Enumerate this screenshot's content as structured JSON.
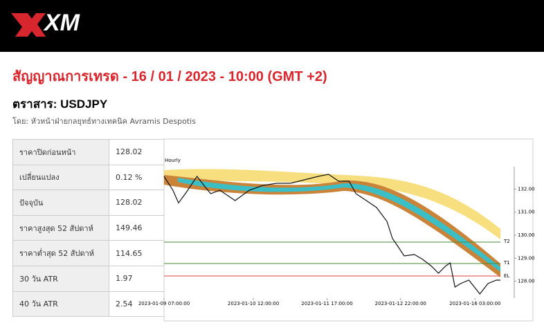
{
  "header": {
    "logo": "XM"
  },
  "title": "สัญญาณการเทรด - 16 / 01 / 2023 - 10:00 (GMT +2)",
  "instrument": "ตราสาร: USDJPY",
  "author": "โดย: หัวหน้าฝ่ายกลยุทธ์ทางเทคนิค Avramis Despotis",
  "table": {
    "rows": [
      [
        "ราคาปิดก่อนหน้า",
        "128.02"
      ],
      [
        "เปลี่ยนแปลง",
        "0.12 %"
      ],
      [
        "ปัจจุบัน",
        "128.02"
      ],
      [
        "ราคาสูงสุด 52 สัปดาห์",
        "149.46"
      ],
      [
        "ราคาต่ำสุด 52 สัปดาห์",
        "114.65"
      ],
      [
        "30 วัน ATR",
        "1.97"
      ],
      [
        "40 วัน ATR",
        "2.54"
      ]
    ]
  },
  "chart": {
    "type": "line",
    "title": "Hourly",
    "x": [
      0,
      3.5,
      5.7,
      8.4,
      13,
      15.7,
      18.4,
      22,
      28,
      33.6,
      39,
      44.4,
      49.8,
      55.3,
      60.7,
      64.8,
      68.8,
      72.9,
      75.6,
      79.7,
      83.7,
      87.8,
      90,
      91.9,
      94.6,
      98.6,
      101.9,
      105.4,
      108.1,
      110.8,
      112.7,
      114.6,
      116.8,
      120.1,
      124.4,
      127.6,
      130.9,
      132.5
    ],
    "values": [
      132.55,
      131.95,
      131.4,
      131.8,
      132.55,
      132.16,
      131.8,
      131.95,
      131.5,
      131.95,
      132.16,
      132.25,
      132.25,
      132.4,
      132.55,
      132.64,
      132.34,
      132.34,
      131.8,
      131.5,
      131.2,
      130.6,
      129.85,
      129.55,
      129.1,
      129.16,
      128.95,
      128.65,
      128.35,
      128.65,
      128.8,
      127.75,
      127.9,
      128.05,
      127.45,
      127.9,
      128.05,
      128.05
    ],
    "color": "#111111",
    "xlim": [
      0,
      132.5
    ],
    "ylim": [
      127.3,
      133.0
    ],
    "xticks": [
      {
        "value": 0,
        "label": "2023-01-09 07:00:00"
      },
      {
        "value": 35.2,
        "label": "2023-01-10 12:00:00"
      },
      {
        "value": 64.2,
        "label": "2023-01-11 17:00:00"
      },
      {
        "value": 93.2,
        "label": "2023-01-12 22:00:00"
      },
      {
        "value": 122.5,
        "label": "2023-01-16 03:00:00"
      }
    ],
    "yticks": [
      {
        "value": 128,
        "label": "128.00"
      },
      {
        "value": 129,
        "label": "129.00"
      },
      {
        "value": 130,
        "label": "130.00"
      },
      {
        "value": 131,
        "label": "131.00"
      },
      {
        "value": 132,
        "label": "132.00"
      }
    ],
    "levels": [
      {
        "name": "T2",
        "value": 129.7,
        "color": "#4a8a3a"
      },
      {
        "name": "T1",
        "value": 128.77,
        "color": "#4a8a3a"
      },
      {
        "name": "EL",
        "value": 128.23,
        "color": "#d94040"
      }
    ]
  }
}
